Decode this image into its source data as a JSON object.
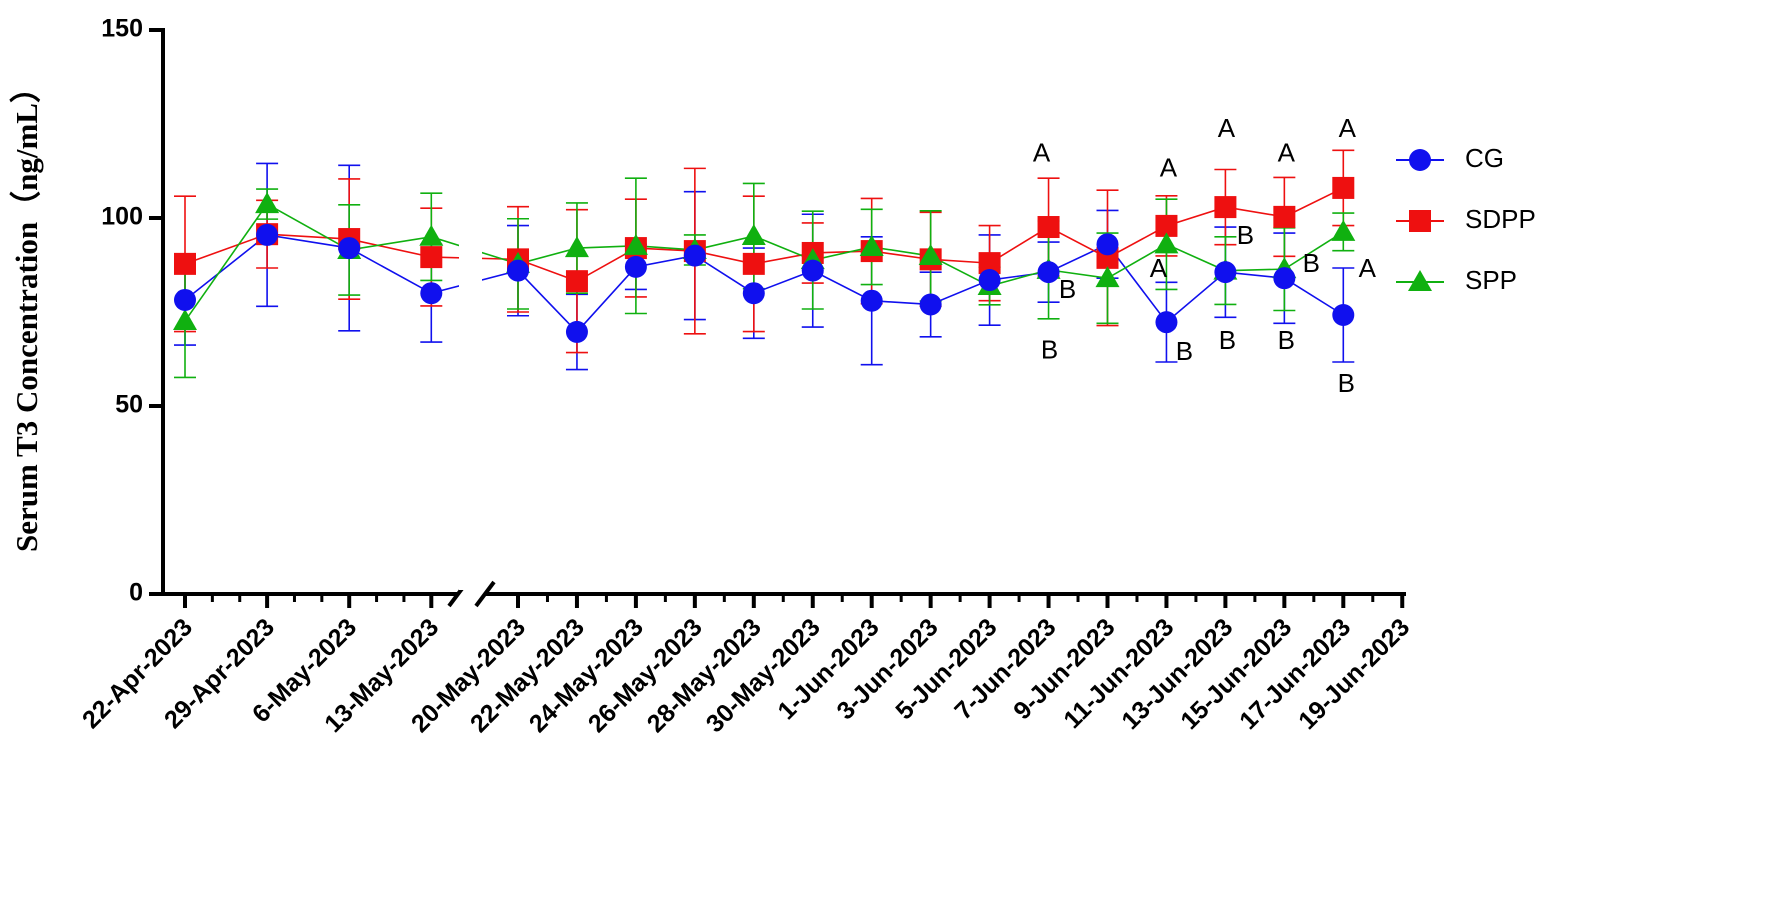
{
  "chart_data": {
    "type": "line",
    "y_label": "Serum T3 Concentration（ng/mL）",
    "categories": [
      "22-Apr-2023",
      "29-Apr-2023",
      "6-May-2023",
      "13-May-2023",
      "20-May-2023",
      "22-May-2023",
      "24-May-2023",
      "26-May-2023",
      "28-May-2023",
      "30-May-2023",
      "1-Jun-2023",
      "3-Jun-2023",
      "5-Jun-2023",
      "7-Jun-2023",
      "9-Jun-2023",
      "11-Jun-2023",
      "13-Jun-2023",
      "15-Jun-2023",
      "17-Jun-2023",
      "19-Jun-2023"
    ],
    "series": [
      {
        "name": "CG",
        "color": "#1010ee",
        "marker": "circle",
        "values": [
          78.2,
          95.5,
          92,
          80,
          86,
          69.7,
          87,
          90,
          80,
          86,
          78,
          77,
          83.5,
          85.6,
          93,
          72.3,
          85.6,
          84,
          74.2,
          null
        ],
        "errors": [
          12,
          19,
          22,
          13,
          12,
          10,
          6,
          17,
          12,
          15,
          17,
          8.6,
          12,
          8,
          9,
          10.6,
          12,
          12,
          12.5,
          null
        ]
      },
      {
        "name": "SDPP",
        "color": "#ee1010",
        "marker": "square",
        "values": [
          87.8,
          95.7,
          94.4,
          89.6,
          89,
          83.2,
          92,
          91.2,
          87.8,
          90.7,
          91.2,
          89,
          88,
          97.6,
          89.4,
          97.9,
          102.9,
          100.3,
          108,
          null
        ],
        "errors": [
          18,
          9,
          16,
          13,
          14,
          19,
          13,
          22,
          18,
          8,
          14,
          12.5,
          10,
          13,
          18,
          8,
          10,
          10.5,
          10,
          null
        ]
      },
      {
        "name": "SPP",
        "color": "#10b010",
        "marker": "triangle",
        "values": [
          72.6,
          103.7,
          91.5,
          95,
          87.8,
          92,
          92.6,
          91.5,
          95.2,
          88.8,
          92.3,
          89.9,
          81.9,
          86.2,
          84,
          93,
          86,
          86.4,
          96.3,
          null
        ],
        "errors": [
          15,
          4,
          12,
          11.6,
          12,
          12,
          18,
          4,
          14,
          13,
          10,
          12,
          5,
          13,
          12,
          12,
          9,
          11,
          5,
          null
        ]
      }
    ],
    "ylim": [
      0,
      150
    ],
    "yticks": [
      0,
      50,
      100,
      150
    ],
    "annotations": [
      {
        "text": "A",
        "x": "7-Jun-2023",
        "y": 116.8
      },
      {
        "text": "B",
        "x": "7-Jun-2023",
        "y": 80.6
      },
      {
        "text": "B",
        "x": "7-Jun-2023",
        "y": 64.4
      },
      {
        "text": "A",
        "x": "11-Jun-2023",
        "y": 112.8
      },
      {
        "text": "A",
        "x": "11-Jun-2023",
        "y": 86.2
      },
      {
        "text": "B",
        "x": "11-Jun-2023",
        "y": 64.1
      },
      {
        "text": "A",
        "x": "13-Jun-2023",
        "y": 123.4
      },
      {
        "text": "B",
        "x": "13-Jun-2023",
        "y": 94.9
      },
      {
        "text": "B",
        "x": "13-Jun-2023",
        "y": 67
      },
      {
        "text": "A",
        "x": "15-Jun-2023",
        "y": 116.8
      },
      {
        "text": "B",
        "x": "15-Jun-2023",
        "y": 87.5
      },
      {
        "text": "B",
        "x": "15-Jun-2023",
        "y": 67
      },
      {
        "text": "A",
        "x": "17-Jun-2023",
        "y": 123.4
      },
      {
        "text": "A",
        "x": "17-Jun-2023",
        "y": 86.2
      },
      {
        "text": "B",
        "x": "17-Jun-2023",
        "y": 55.6
      }
    ],
    "legend": "right"
  }
}
